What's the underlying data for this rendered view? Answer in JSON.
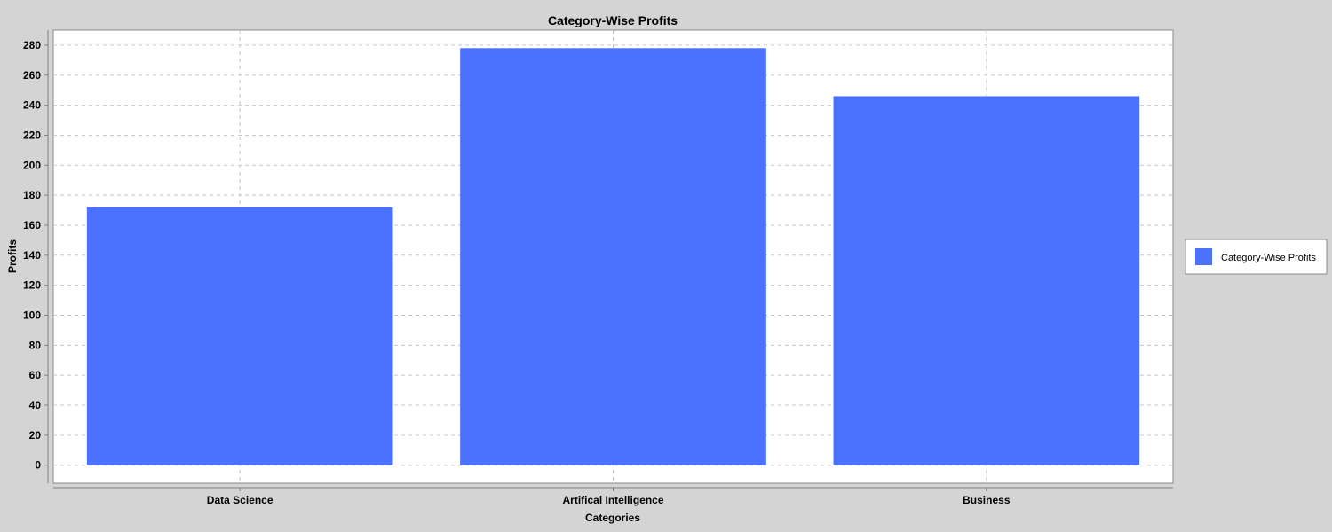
{
  "chart_data": {
    "type": "bar",
    "title": "Category-Wise Profits",
    "xlabel": "Categories",
    "ylabel": "Profits",
    "categories": [
      "Data Science",
      "Artifical Intelligence",
      "Business"
    ],
    "series": [
      {
        "name": "Category-Wise Profits",
        "values": [
          172,
          278,
          246
        ],
        "color": "#4a71ff"
      }
    ],
    "ylim": [
      -12,
      290
    ],
    "yticks": [
      0,
      20,
      40,
      60,
      80,
      100,
      120,
      140,
      160,
      180,
      200,
      220,
      240,
      260,
      280
    ],
    "grid": true,
    "legend": "right",
    "colors": {
      "background": "#d4d4d4",
      "plot_background": "#ffffff",
      "grid": "#c8c8c8"
    }
  }
}
